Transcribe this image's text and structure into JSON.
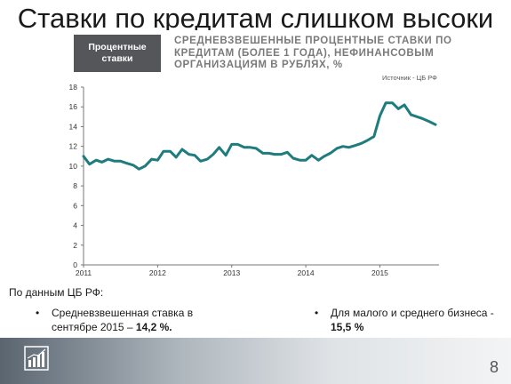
{
  "slide": {
    "title": "Ставки по кредитам слишком высоки",
    "page_number": "8"
  },
  "chart_header": {
    "line1": "Процентные",
    "line2": "ставки"
  },
  "chart_title": {
    "line1": "СРЕДНЕВЗВЕШЕННЫЕ ПРОЦЕНТНЫЕ СТАВКИ ПО",
    "line2": "КРЕДИТАМ (БОЛЕЕ 1 ГОДА), НЕФИНАНСОВЫМ",
    "line3": "ОРГАНИЗАЦИЯМ В РУБЛЯХ, %"
  },
  "source": "Источник - ЦБ РФ",
  "note": "По данным ЦБ РФ:",
  "bullets": [
    {
      "text": "Средневзвешенная ставка в сентябре 2015 – ",
      "value": "14,2 %."
    },
    {
      "text": "Для малого и среднего бизнеса - ",
      "value": "15,5 %"
    }
  ],
  "colors": {
    "line": "#1e7b7e",
    "header_bg": "#55565a",
    "axis": "#777777"
  },
  "icons": {
    "footer_logo": "bar-chart-icon"
  },
  "chart_data": {
    "type": "line",
    "title": "",
    "xlabel": "",
    "ylabel": "",
    "ylim": [
      0,
      18
    ],
    "yticks": [
      0,
      2,
      4,
      6,
      8,
      10,
      12,
      14,
      16,
      18
    ],
    "xticks": [
      {
        "label": "2011",
        "x": 2011.0
      },
      {
        "label": "2012",
        "x": 2012.0
      },
      {
        "label": "2013",
        "x": 2013.0
      },
      {
        "label": "2014",
        "x": 2014.0
      },
      {
        "label": "2015",
        "x": 2015.0
      }
    ],
    "xlim": [
      2011.0,
      2015.75
    ],
    "grid": false,
    "series": [
      {
        "values": [
          [
            2011.0,
            11.0
          ],
          [
            2011.08,
            10.2
          ],
          [
            2011.17,
            10.6
          ],
          [
            2011.25,
            10.4
          ],
          [
            2011.33,
            10.7
          ],
          [
            2011.42,
            10.5
          ],
          [
            2011.5,
            10.5
          ],
          [
            2011.58,
            10.3
          ],
          [
            2011.67,
            10.1
          ],
          [
            2011.75,
            9.7
          ],
          [
            2011.83,
            10.0
          ],
          [
            2011.92,
            10.7
          ],
          [
            2012.0,
            10.6
          ],
          [
            2012.08,
            11.5
          ],
          [
            2012.17,
            11.5
          ],
          [
            2012.25,
            10.9
          ],
          [
            2012.33,
            11.7
          ],
          [
            2012.42,
            11.2
          ],
          [
            2012.5,
            11.1
          ],
          [
            2012.58,
            10.5
          ],
          [
            2012.67,
            10.7
          ],
          [
            2012.75,
            11.2
          ],
          [
            2012.83,
            11.9
          ],
          [
            2012.92,
            11.1
          ],
          [
            2013.0,
            12.2
          ],
          [
            2013.08,
            12.2
          ],
          [
            2013.17,
            11.9
          ],
          [
            2013.25,
            11.9
          ],
          [
            2013.33,
            11.8
          ],
          [
            2013.42,
            11.3
          ],
          [
            2013.5,
            11.3
          ],
          [
            2013.58,
            11.2
          ],
          [
            2013.67,
            11.2
          ],
          [
            2013.75,
            11.4
          ],
          [
            2013.83,
            10.8
          ],
          [
            2013.92,
            10.6
          ],
          [
            2014.0,
            10.6
          ],
          [
            2014.08,
            11.1
          ],
          [
            2014.17,
            10.6
          ],
          [
            2014.25,
            11.0
          ],
          [
            2014.33,
            11.3
          ],
          [
            2014.42,
            11.8
          ],
          [
            2014.5,
            12.0
          ],
          [
            2014.58,
            11.9
          ],
          [
            2014.67,
            12.1
          ],
          [
            2014.75,
            12.3
          ],
          [
            2014.83,
            12.6
          ],
          [
            2014.92,
            13.0
          ],
          [
            2015.0,
            15.1
          ],
          [
            2015.08,
            16.4
          ],
          [
            2015.17,
            16.4
          ],
          [
            2015.25,
            15.8
          ],
          [
            2015.33,
            16.2
          ],
          [
            2015.42,
            15.2
          ],
          [
            2015.5,
            15.0
          ],
          [
            2015.58,
            14.8
          ],
          [
            2015.67,
            14.5
          ],
          [
            2015.75,
            14.2
          ]
        ]
      }
    ]
  }
}
